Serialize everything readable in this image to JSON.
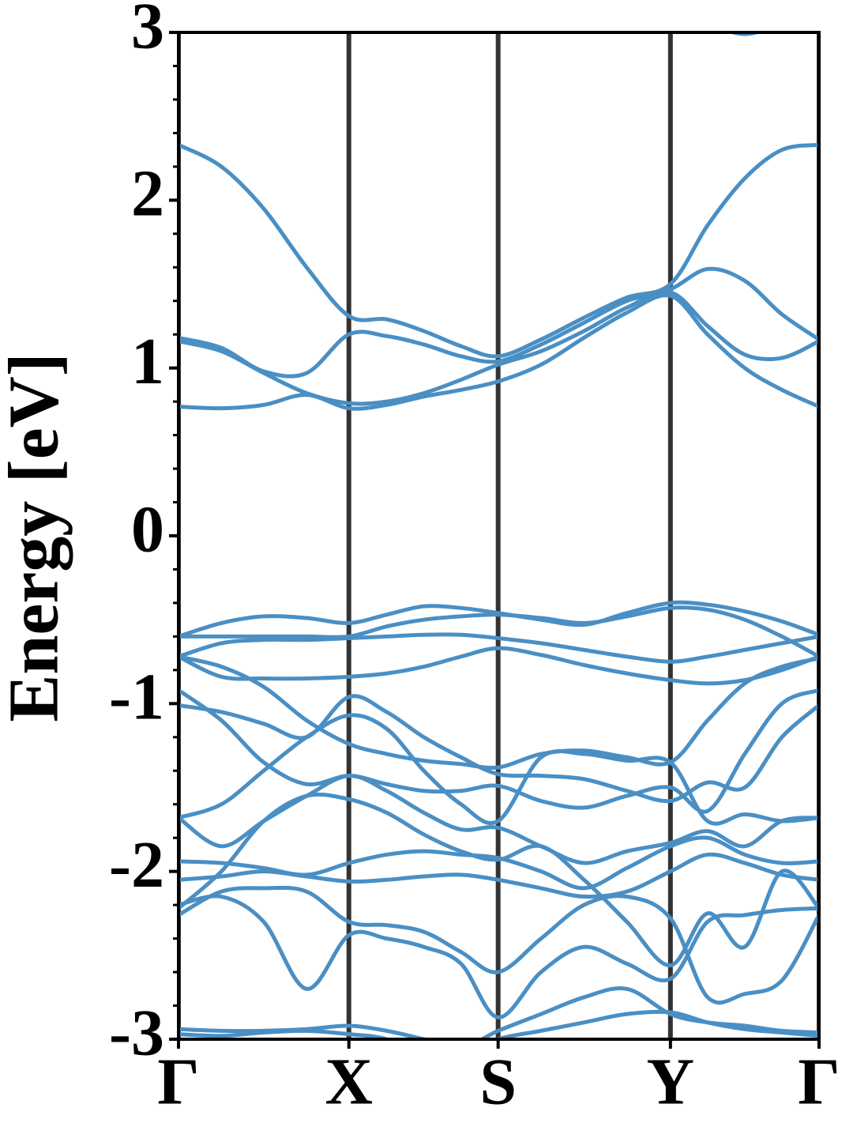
{
  "chart_data": {
    "type": "line",
    "ylabel": "Energy [eV]",
    "xlim": [
      0,
      1
    ],
    "xticks": [
      {
        "value": 0,
        "label": "Γ"
      },
      {
        "value": 0.266,
        "label": "X"
      },
      {
        "value": 0.499,
        "label": "S"
      },
      {
        "value": 0.768,
        "label": "Y"
      },
      {
        "value": 1,
        "label": "Γ"
      }
    ],
    "ylim": [
      -3,
      3
    ],
    "yticks": [
      -3,
      -2,
      -1,
      0,
      1,
      2,
      3
    ],
    "yminorticks": [
      -2.8,
      -2.6,
      -2.4,
      -2.2,
      -1.8,
      -1.6,
      -1.4,
      -1.2,
      -0.8,
      -0.6,
      -0.4,
      -0.2,
      0.2,
      0.4,
      0.6,
      0.8,
      1.2,
      1.4,
      1.6,
      1.8,
      2.2,
      2.4,
      2.6,
      2.8
    ],
    "vlines_color": "#333333",
    "x": [
      0,
      0.067,
      0.133,
      0.2,
      0.266,
      0.325,
      0.383,
      0.441,
      0.499,
      0.566,
      0.633,
      0.7,
      0.768,
      0.826,
      0.884,
      0.942,
      1.0
    ],
    "series": [
      {
        "color": "#4a8fc4",
        "values": [
          null,
          null,
          null,
          null,
          null,
          null,
          null,
          null,
          null,
          null,
          null,
          null,
          null,
          3.05,
          2.99,
          3.05,
          null
        ]
      },
      {
        "color": "#4a8fc4",
        "values": [
          2.33,
          2.2,
          1.95,
          1.6,
          1.31,
          1.29,
          1.22,
          1.13,
          1.07,
          1.17,
          1.3,
          1.42,
          1.5,
          1.85,
          2.13,
          2.3,
          2.33
        ]
      },
      {
        "color": "#4a8fc4",
        "values": [
          1.18,
          1.12,
          0.98,
          0.97,
          1.2,
          1.19,
          1.14,
          1.07,
          1.04,
          1.14,
          1.27,
          1.4,
          1.47,
          1.59,
          1.52,
          1.32,
          1.17
        ]
      },
      {
        "color": "#4a8fc4",
        "values": [
          1.16,
          1.1,
          0.97,
          0.85,
          0.79,
          0.8,
          0.85,
          0.93,
          1.02,
          1.1,
          1.22,
          1.36,
          1.45,
          1.25,
          1.08,
          1.06,
          1.16
        ]
      },
      {
        "color": "#4a8fc4",
        "values": [
          0.77,
          0.76,
          0.78,
          0.84,
          0.76,
          0.78,
          0.83,
          0.87,
          0.92,
          1.02,
          1.18,
          1.33,
          1.43,
          1.2,
          1.0,
          0.87,
          0.77
        ]
      },
      {
        "color": "#4a8fc4",
        "values": [
          -0.6,
          -0.52,
          -0.48,
          -0.49,
          -0.52,
          -0.47,
          -0.42,
          -0.43,
          -0.46,
          -0.5,
          -0.53,
          -0.46,
          -0.4,
          -0.41,
          -0.45,
          -0.51,
          -0.59
        ]
      },
      {
        "color": "#4a8fc4",
        "values": [
          -0.6,
          -0.6,
          -0.6,
          -0.6,
          -0.6,
          -0.54,
          -0.5,
          -0.48,
          -0.47,
          -0.49,
          -0.52,
          -0.48,
          -0.43,
          -0.44,
          -0.5,
          -0.6,
          -0.72
        ]
      },
      {
        "color": "#4a8fc4",
        "values": [
          -0.72,
          -0.64,
          -0.62,
          -0.62,
          -0.61,
          -0.6,
          -0.59,
          -0.59,
          -0.61,
          -0.64,
          -0.68,
          -0.72,
          -0.75,
          -0.72,
          -0.68,
          -0.64,
          -0.6
        ]
      },
      {
        "color": "#4a8fc4",
        "values": [
          -0.72,
          -0.84,
          -0.85,
          -0.85,
          -0.84,
          -0.82,
          -0.78,
          -0.72,
          -0.67,
          -0.71,
          -0.77,
          -0.82,
          -0.86,
          -0.88,
          -0.86,
          -0.8,
          -0.72
        ]
      },
      {
        "color": "#4a8fc4",
        "values": [
          -0.72,
          -0.78,
          -0.9,
          -1.1,
          -1.24,
          -1.3,
          -1.34,
          -1.36,
          -1.38,
          -1.3,
          -1.28,
          -1.32,
          -1.35,
          -1.1,
          -0.88,
          -0.78,
          -0.73
        ]
      },
      {
        "color": "#4a8fc4",
        "values": [
          -0.92,
          -1.1,
          -1.35,
          -1.48,
          -1.43,
          -1.48,
          -1.52,
          -1.52,
          -1.49,
          -1.58,
          -1.62,
          -1.55,
          -1.5,
          -1.64,
          -1.3,
          -1.0,
          -0.92
        ]
      },
      {
        "color": "#4a8fc4",
        "values": [
          -1.01,
          -1.05,
          -1.12,
          -1.2,
          -0.96,
          -1.05,
          -1.2,
          -1.32,
          -1.42,
          -1.43,
          -1.45,
          -1.52,
          -1.58,
          -1.47,
          -1.5,
          -1.2,
          -1.01
        ]
      },
      {
        "color": "#4a8fc4",
        "values": [
          -1.68,
          -1.6,
          -1.4,
          -1.2,
          -1.07,
          -1.15,
          -1.4,
          -1.6,
          -1.7,
          -1.32,
          -1.3,
          -1.34,
          -1.35,
          -1.7,
          -1.66,
          -1.7,
          -1.68
        ]
      },
      {
        "color": "#4a8fc4",
        "values": [
          -1.68,
          -1.85,
          -1.7,
          -1.55,
          -1.43,
          -1.52,
          -1.65,
          -1.75,
          -1.74,
          -1.85,
          -1.95,
          -1.88,
          -1.83,
          -1.76,
          -1.85,
          -1.7,
          -1.68
        ]
      },
      {
        "color": "#4a8fc4",
        "values": [
          -1.94,
          -1.95,
          -1.98,
          -2.02,
          -1.95,
          -1.9,
          -1.88,
          -1.9,
          -1.92,
          -2.0,
          -2.1,
          -1.98,
          -1.85,
          -1.8,
          -1.9,
          -1.95,
          -1.94
        ]
      },
      {
        "color": "#4a8fc4",
        "values": [
          -2.05,
          -2.03,
          -2.0,
          -2.03,
          -2.06,
          -2.05,
          -2.03,
          -2.02,
          -2.05,
          -2.1,
          -2.15,
          -2.12,
          -2.0,
          -1.9,
          -1.95,
          -2.02,
          -2.05
        ]
      },
      {
        "color": "#4a8fc4",
        "values": [
          -2.22,
          -2.0,
          -1.7,
          -1.55,
          -1.57,
          -1.65,
          -1.78,
          -1.88,
          -1.93,
          -1.85,
          -2.05,
          -2.3,
          -2.56,
          -2.25,
          -2.45,
          -2.0,
          -2.22
        ]
      },
      {
        "color": "#4a8fc4",
        "values": [
          -2.26,
          -2.12,
          -2.1,
          -2.12,
          -2.3,
          -2.32,
          -2.36,
          -2.48,
          -2.6,
          -2.4,
          -2.2,
          -2.15,
          -2.28,
          -2.75,
          -2.73,
          -2.65,
          -2.26
        ]
      },
      {
        "color": "#4a8fc4",
        "values": [
          -2.2,
          -2.15,
          -2.3,
          -2.7,
          -2.38,
          -2.4,
          -2.45,
          -2.55,
          -2.87,
          -2.6,
          -2.45,
          -2.55,
          -2.64,
          -2.3,
          -2.26,
          -2.23,
          -2.22
        ]
      },
      {
        "color": "#4a8fc4",
        "values": [
          -2.94,
          -2.95,
          -2.95,
          -2.94,
          -2.92,
          -2.95,
          -3.0,
          -3.05,
          -2.95,
          -2.85,
          -2.75,
          -2.7,
          -2.85,
          -2.9,
          -2.92,
          -2.95,
          -2.96
        ]
      },
      {
        "color": "#4a8fc4",
        "values": [
          -2.97,
          -2.98,
          -2.96,
          -2.95,
          -2.97,
          -3.0,
          -3.1,
          -3.1,
          -3.0,
          -2.95,
          -2.9,
          -2.85,
          -2.84,
          -2.9,
          -2.94,
          -2.96,
          -2.98
        ]
      }
    ]
  }
}
